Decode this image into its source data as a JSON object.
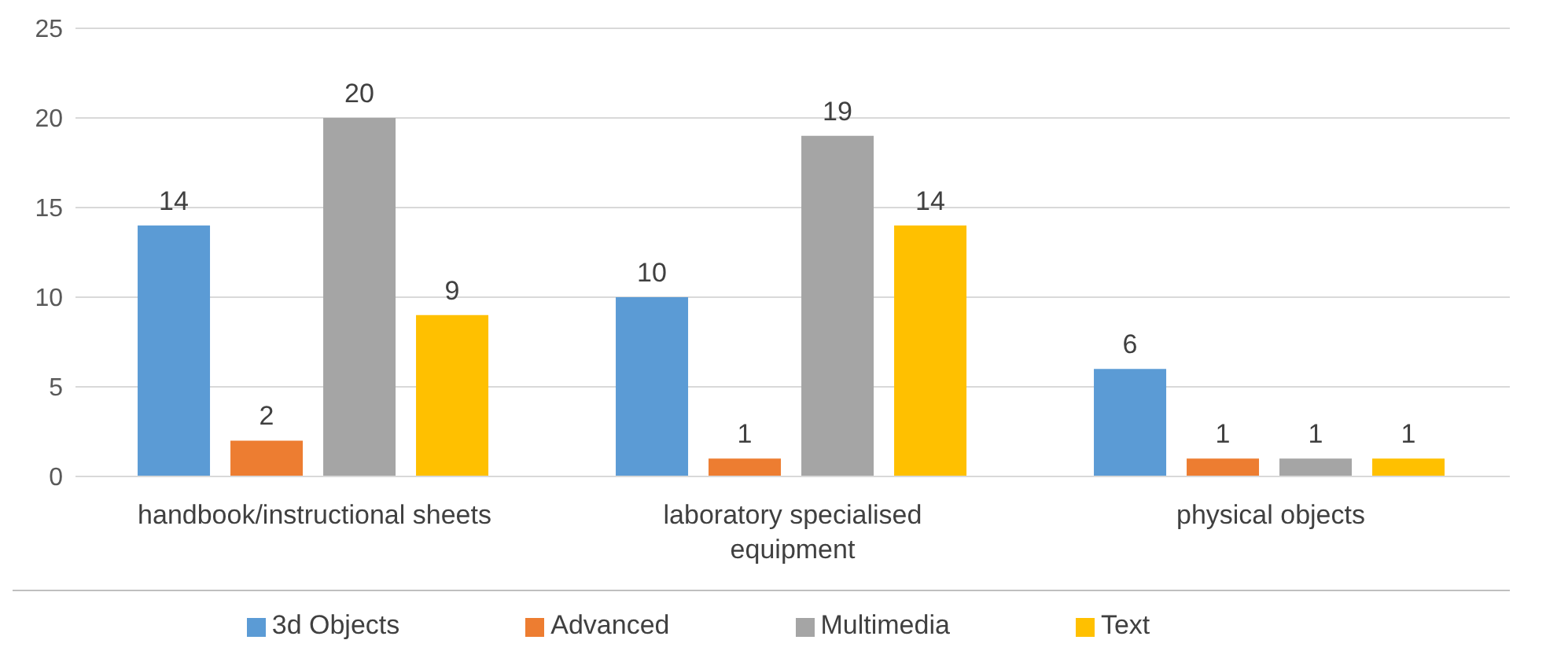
{
  "chart_data": {
    "type": "bar",
    "categories": [
      "handbook/instructional sheets",
      "laboratory specialised equipment",
      "physical objects"
    ],
    "series": [
      {
        "name": "3d Objects",
        "color": "#5b9bd5",
        "values": [
          14,
          10,
          6
        ]
      },
      {
        "name": "Advanced",
        "color": "#ed7d31",
        "values": [
          2,
          1,
          1
        ]
      },
      {
        "name": "Multimedia",
        "color": "#a5a5a5",
        "values": [
          20,
          19,
          1
        ]
      },
      {
        "name": "Text",
        "color": "#ffc000",
        "values": [
          9,
          14,
          1
        ]
      }
    ],
    "ylim": [
      0,
      25
    ],
    "yticks": [
      0,
      5,
      10,
      15,
      20,
      25
    ],
    "grid": "y",
    "legend": "bottom",
    "data_labels": true
  }
}
